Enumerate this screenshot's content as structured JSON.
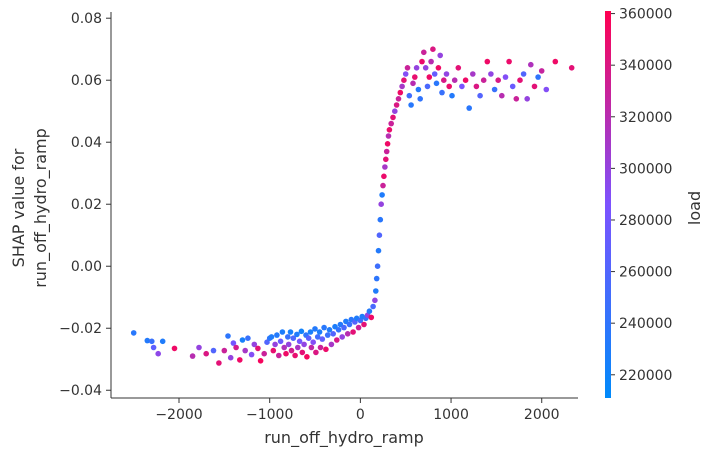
{
  "chart_data": {
    "type": "scatter",
    "title": "",
    "xlabel": "run_off_hydro_ramp",
    "ylabel_lines": [
      "SHAP value for",
      "run_off_hydro_ramp"
    ],
    "xlim": [
      -2750,
      2400
    ],
    "ylim": [
      -0.0425,
      0.082
    ],
    "xticks": [
      -2000,
      -1000,
      0,
      1000,
      2000
    ],
    "xtick_labels": [
      "−2000",
      "−1000",
      "0",
      "1000",
      "2000"
    ],
    "yticks": [
      -0.04,
      -0.02,
      0.0,
      0.02,
      0.04,
      0.06,
      0.08
    ],
    "ytick_labels": [
      "−0.04",
      "−0.02",
      "0.00",
      "0.02",
      "0.04",
      "0.06",
      "0.08"
    ],
    "grid": false,
    "colorbar": {
      "label": "load",
      "range": [
        211000,
        361000
      ],
      "ticks": [
        220000,
        240000,
        260000,
        280000,
        300000,
        320000,
        340000,
        360000
      ],
      "tick_labels": [
        "220000",
        "240000",
        "260000",
        "280000",
        "300000",
        "320000",
        "340000",
        "360000"
      ],
      "color_low": "#008AFA",
      "color_high": "#FF0051"
    },
    "points": [
      [
        -2500,
        -0.0215,
        235000
      ],
      [
        -2350,
        -0.024,
        232000
      ],
      [
        -2300,
        -0.0242,
        245000
      ],
      [
        -2280,
        -0.0262,
        268000
      ],
      [
        -2230,
        -0.0282,
        296000
      ],
      [
        -2180,
        -0.0242,
        230000
      ],
      [
        -2050,
        -0.0265,
        352000
      ],
      [
        -1850,
        -0.029,
        320000
      ],
      [
        -1780,
        -0.0262,
        300000
      ],
      [
        -1700,
        -0.0282,
        340000
      ],
      [
        -1620,
        -0.0272,
        260000
      ],
      [
        -1560,
        -0.0312,
        345000
      ],
      [
        -1500,
        -0.0272,
        330000
      ],
      [
        -1460,
        -0.0225,
        238000
      ],
      [
        -1430,
        -0.0295,
        300000
      ],
      [
        -1400,
        -0.0248,
        282000
      ],
      [
        -1370,
        -0.0262,
        335000
      ],
      [
        -1330,
        -0.0302,
        352000
      ],
      [
        -1300,
        -0.0238,
        225000
      ],
      [
        -1270,
        -0.0272,
        310000
      ],
      [
        -1240,
        -0.0232,
        245000
      ],
      [
        -1200,
        -0.0285,
        290000
      ],
      [
        -1170,
        -0.0252,
        300000
      ],
      [
        -1130,
        -0.0265,
        345000
      ],
      [
        -1100,
        -0.0305,
        356000
      ],
      [
        -1060,
        -0.0282,
        330000
      ],
      [
        -1030,
        -0.0245,
        260000
      ],
      [
        -1000,
        -0.0232,
        238000
      ],
      [
        -980,
        -0.0228,
        230000
      ],
      [
        -960,
        -0.0272,
        348000
      ],
      [
        -940,
        -0.0252,
        300000
      ],
      [
        -920,
        -0.0222,
        232000
      ],
      [
        -900,
        -0.0288,
        330000
      ],
      [
        -880,
        -0.0242,
        275000
      ],
      [
        -860,
        -0.0212,
        228000
      ],
      [
        -840,
        -0.0262,
        315000
      ],
      [
        -820,
        -0.0282,
        352000
      ],
      [
        -800,
        -0.0228,
        245000
      ],
      [
        -790,
        -0.0252,
        300000
      ],
      [
        -770,
        -0.0212,
        225000
      ],
      [
        -760,
        -0.0272,
        335000
      ],
      [
        -740,
        -0.0232,
        258000
      ],
      [
        -720,
        -0.0288,
        348000
      ],
      [
        -700,
        -0.022,
        230000
      ],
      [
        -690,
        -0.0262,
        312000
      ],
      [
        -670,
        -0.0242,
        282000
      ],
      [
        -650,
        -0.021,
        222000
      ],
      [
        -640,
        -0.0278,
        345000
      ],
      [
        -620,
        -0.0252,
        298000
      ],
      [
        -600,
        -0.0222,
        240000
      ],
      [
        -590,
        -0.0292,
        355000
      ],
      [
        -570,
        -0.0232,
        268000
      ],
      [
        -550,
        -0.0212,
        226000
      ],
      [
        -540,
        -0.0262,
        325000
      ],
      [
        -520,
        -0.0245,
        290000
      ],
      [
        -500,
        -0.0202,
        232000
      ],
      [
        -490,
        -0.0278,
        340000
      ],
      [
        -470,
        -0.0228,
        250000
      ],
      [
        -450,
        -0.0212,
        228000
      ],
      [
        -440,
        -0.0262,
        330000
      ],
      [
        -420,
        -0.0235,
        270000
      ],
      [
        -400,
        -0.0198,
        235000
      ],
      [
        -380,
        -0.0268,
        350000
      ],
      [
        -360,
        -0.0222,
        245000
      ],
      [
        -340,
        -0.0205,
        230000
      ],
      [
        -320,
        -0.0252,
        310000
      ],
      [
        -300,
        -0.0218,
        260000
      ],
      [
        -280,
        -0.0195,
        228000
      ],
      [
        -260,
        -0.0238,
        338000
      ],
      [
        -240,
        -0.0205,
        242000
      ],
      [
        -220,
        -0.0188,
        232000
      ],
      [
        -200,
        -0.0228,
        300000
      ],
      [
        -180,
        -0.0198,
        255000
      ],
      [
        -160,
        -0.0178,
        230000
      ],
      [
        -140,
        -0.0218,
        320000
      ],
      [
        -120,
        -0.0188,
        245000
      ],
      [
        -100,
        -0.0172,
        236000
      ],
      [
        -80,
        -0.0212,
        345000
      ],
      [
        -60,
        -0.018,
        262000
      ],
      [
        -40,
        -0.0168,
        230000
      ],
      [
        -20,
        -0.0198,
        330000
      ],
      [
        0,
        -0.0175,
        250000
      ],
      [
        20,
        -0.0162,
        228000
      ],
      [
        40,
        -0.0188,
        345000
      ],
      [
        60,
        -0.0168,
        240000
      ],
      [
        80,
        -0.0158,
        300000
      ],
      [
        100,
        -0.0145,
        232000
      ],
      [
        120,
        -0.0165,
        352000
      ],
      [
        140,
        -0.013,
        255000
      ],
      [
        160,
        -0.011,
        300000
      ],
      [
        170,
        -0.008,
        230000
      ],
      [
        180,
        -0.004,
        238000
      ],
      [
        190,
        0.0,
        248000
      ],
      [
        200,
        0.005,
        232000
      ],
      [
        210,
        0.01,
        260000
      ],
      [
        220,
        0.015,
        236000
      ],
      [
        230,
        0.02,
        300000
      ],
      [
        240,
        0.023,
        230000
      ],
      [
        250,
        0.026,
        330000
      ],
      [
        260,
        0.029,
        350000
      ],
      [
        270,
        0.032,
        310000
      ],
      [
        280,
        0.0345,
        345000
      ],
      [
        290,
        0.037,
        330000
      ],
      [
        300,
        0.0395,
        352000
      ],
      [
        310,
        0.042,
        320000
      ],
      [
        320,
        0.044,
        350000
      ],
      [
        340,
        0.046,
        330000
      ],
      [
        360,
        0.048,
        345000
      ],
      [
        380,
        0.05,
        300000
      ],
      [
        400,
        0.052,
        340000
      ],
      [
        420,
        0.054,
        330000
      ],
      [
        440,
        0.056,
        352000
      ],
      [
        460,
        0.058,
        310000
      ],
      [
        480,
        0.06,
        345000
      ],
      [
        500,
        0.062,
        290000
      ],
      [
        520,
        0.064,
        330000
      ],
      [
        540,
        0.055,
        250000
      ],
      [
        560,
        0.052,
        235000
      ],
      [
        580,
        0.059,
        320000
      ],
      [
        600,
        0.061,
        348000
      ],
      [
        620,
        0.064,
        300000
      ],
      [
        640,
        0.057,
        232000
      ],
      [
        660,
        0.054,
        240000
      ],
      [
        680,
        0.066,
        350000
      ],
      [
        700,
        0.069,
        330000
      ],
      [
        720,
        0.064,
        300000
      ],
      [
        740,
        0.058,
        256000
      ],
      [
        760,
        0.061,
        352000
      ],
      [
        780,
        0.066,
        320000
      ],
      [
        800,
        0.07,
        340000
      ],
      [
        820,
        0.062,
        272000
      ],
      [
        840,
        0.059,
        236000
      ],
      [
        860,
        0.064,
        352000
      ],
      [
        880,
        0.068,
        300000
      ],
      [
        900,
        0.056,
        245000
      ],
      [
        920,
        0.06,
        338000
      ],
      [
        950,
        0.062,
        298000
      ],
      [
        980,
        0.058,
        350000
      ],
      [
        1010,
        0.055,
        232000
      ],
      [
        1040,
        0.06,
        320000
      ],
      [
        1080,
        0.064,
        345000
      ],
      [
        1120,
        0.058,
        285000
      ],
      [
        1160,
        0.06,
        352000
      ],
      [
        1200,
        0.051,
        236000
      ],
      [
        1240,
        0.062,
        310000
      ],
      [
        1280,
        0.058,
        340000
      ],
      [
        1320,
        0.055,
        262000
      ],
      [
        1360,
        0.06,
        330000
      ],
      [
        1400,
        0.066,
        352000
      ],
      [
        1440,
        0.062,
        298000
      ],
      [
        1480,
        0.057,
        245000
      ],
      [
        1520,
        0.06,
        338000
      ],
      [
        1560,
        0.055,
        320000
      ],
      [
        1600,
        0.061,
        290000
      ],
      [
        1640,
        0.066,
        350000
      ],
      [
        1680,
        0.058,
        275000
      ],
      [
        1720,
        0.054,
        330000
      ],
      [
        1760,
        0.06,
        345000
      ],
      [
        1800,
        0.062,
        260000
      ],
      [
        1840,
        0.054,
        300000
      ],
      [
        1880,
        0.065,
        315000
      ],
      [
        1920,
        0.058,
        345000
      ],
      [
        1960,
        0.061,
        240000
      ],
      [
        2000,
        0.063,
        328000
      ],
      [
        2050,
        0.057,
        290000
      ],
      [
        2150,
        0.066,
        352000
      ],
      [
        2330,
        0.064,
        345000
      ]
    ]
  }
}
